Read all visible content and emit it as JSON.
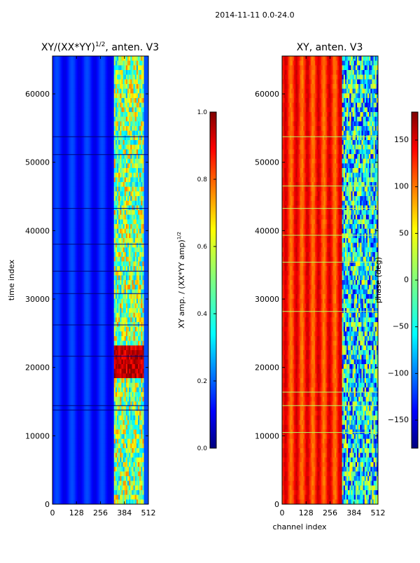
{
  "figure": {
    "suptitle": "2014-11-11 0.0-24.0"
  },
  "chart_data": [
    {
      "type": "heatmap",
      "title_main": "XY/(XX*YY)",
      "title_sup": "1/2",
      "title_rest": ", anten. V3",
      "ylabel": "time index",
      "xlabel": "",
      "xlim": [
        0,
        512
      ],
      "ylim": [
        0,
        65536
      ],
      "xticks": [
        0,
        128,
        256,
        384,
        512
      ],
      "yticks": [
        0,
        10000,
        20000,
        30000,
        40000,
        50000,
        60000
      ],
      "colormap": "jet",
      "colorbar": {
        "label_main": "XY amp. / (XX*YY amp)",
        "label_sup": "1/2",
        "range": [
          0.0,
          1.0
        ],
        "ticks": [
          0.0,
          0.2,
          0.4,
          0.6,
          0.8,
          1.0
        ],
        "tick_labels": [
          "0.0",
          "0.2",
          "0.4",
          "0.6",
          "0.8",
          "1.0"
        ]
      },
      "description": "low normalized amplitude (~0.1-0.2) for channels 0-330; higher and variable (0.3-1.0) for channels ~330-480; red block (~0.9-1.0) at time 19000-23500"
    },
    {
      "type": "heatmap",
      "title": "XY, anten. V3",
      "ylabel": "",
      "xlabel": "channel index",
      "xlim": [
        0,
        512
      ],
      "ylim": [
        0,
        65536
      ],
      "xticks": [
        0,
        128,
        256,
        384,
        512
      ],
      "yticks": [
        0,
        10000,
        20000,
        30000,
        40000,
        50000,
        60000
      ],
      "colormap": "jet",
      "colorbar": {
        "label": "phase (deg)",
        "range": [
          -180,
          180
        ],
        "ticks": [
          -150,
          -100,
          -50,
          0,
          50,
          100,
          150
        ],
        "tick_labels": [
          "−150",
          "−100",
          "−50",
          "0",
          "50",
          "100",
          "150"
        ]
      },
      "description": "phase mostly ~100-160 deg (orange/red) for channels 0-320 with striping; channels ~320-512 highly variable (blue/cyan, -180 to 50 deg)"
    }
  ],
  "colors": {
    "jet": [
      "#00007f",
      "#0000ff",
      "#007fff",
      "#00ffff",
      "#7fff7f",
      "#ffff00",
      "#ff7f00",
      "#ff0000",
      "#7f0000"
    ]
  }
}
